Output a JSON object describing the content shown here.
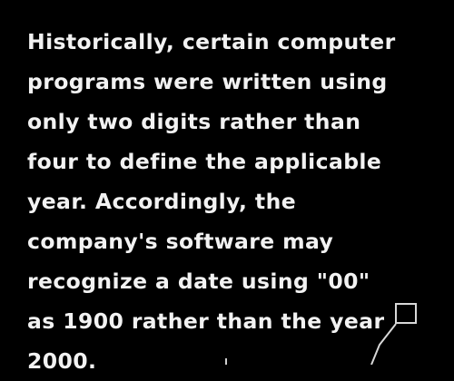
{
  "text": {
    "lines": [
      "Historically, certain computer",
      "programs were written using",
      "only two digits rather than",
      "four to define the applicable",
      "year. Accordingly, the",
      "company's software may",
      "recognize a date using \"00\"",
      "as 1900 rather than the year",
      "2000."
    ]
  },
  "colors": {
    "background": "#000000",
    "text": "#f2f2f2",
    "annotation": "#d8d8d8"
  }
}
